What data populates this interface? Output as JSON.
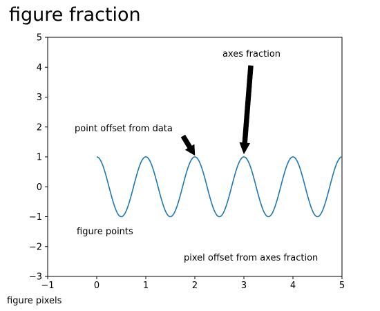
{
  "figure": {
    "title": "figure fraction",
    "bottom_left_label": "figure pixels"
  },
  "chart_data": {
    "type": "line",
    "title": "",
    "xlabel": "",
    "ylabel": "",
    "xlim": [
      -1,
      5
    ],
    "ylim": [
      -3,
      5
    ],
    "x_ticks": [
      -1,
      0,
      1,
      2,
      3,
      4,
      5
    ],
    "y_ticks": [
      -3,
      -2,
      -1,
      0,
      1,
      2,
      3,
      4,
      5
    ],
    "x_tick_labels": [
      "−1",
      "0",
      "1",
      "2",
      "3",
      "4",
      "5"
    ],
    "y_tick_labels": [
      "−3",
      "−2",
      "−1",
      "0",
      "1",
      "2",
      "3",
      "4",
      "5"
    ],
    "grid": false,
    "series": [
      {
        "function": "cos(2*pi*x)",
        "x_range": [
          0,
          5
        ],
        "color": "#1f77b4"
      }
    ],
    "annotations": [
      {
        "text": "axes fraction",
        "has_arrow": true,
        "arrow_tip": [
          3,
          1.1
        ]
      },
      {
        "text": "point offset from data",
        "has_arrow": true,
        "arrow_tip": [
          2,
          1.05
        ]
      },
      {
        "text": "figure points",
        "has_arrow": false
      },
      {
        "text": "pixel offset from axes fraction",
        "has_arrow": false
      }
    ]
  }
}
